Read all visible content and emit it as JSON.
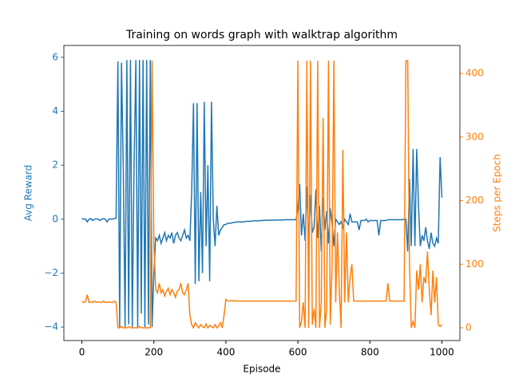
{
  "chart_data": {
    "type": "line",
    "title": "Training on words graph with walktrap algorithm",
    "xlabel": "Episode",
    "ylabel": "Avg Reward",
    "y2label": "Steps per Epoch",
    "x": [
      0,
      5,
      10,
      15,
      20,
      25,
      30,
      35,
      40,
      45,
      50,
      55,
      60,
      65,
      70,
      75,
      80,
      85,
      90,
      95,
      100,
      105,
      110,
      115,
      120,
      125,
      130,
      135,
      140,
      145,
      150,
      155,
      160,
      165,
      170,
      175,
      180,
      185,
      190,
      195,
      200,
      205,
      210,
      215,
      220,
      225,
      230,
      235,
      240,
      245,
      250,
      255,
      260,
      265,
      270,
      275,
      280,
      285,
      290,
      295,
      300,
      305,
      310,
      315,
      320,
      325,
      330,
      335,
      340,
      345,
      350,
      355,
      360,
      365,
      370,
      375,
      380,
      385,
      390,
      395,
      400,
      405,
      410,
      415,
      420,
      425,
      430,
      435,
      440,
      445,
      450,
      455,
      460,
      465,
      470,
      475,
      480,
      485,
      490,
      495,
      500,
      505,
      510,
      515,
      520,
      525,
      530,
      535,
      540,
      545,
      550,
      555,
      560,
      565,
      570,
      575,
      580,
      585,
      590,
      595,
      600,
      605,
      610,
      615,
      620,
      625,
      630,
      635,
      640,
      645,
      650,
      655,
      660,
      665,
      670,
      675,
      680,
      685,
      690,
      695,
      700,
      705,
      710,
      715,
      720,
      725,
      730,
      735,
      740,
      745,
      750,
      755,
      760,
      765,
      770,
      775,
      780,
      785,
      790,
      795,
      800,
      805,
      810,
      815,
      820,
      825,
      830,
      835,
      840,
      845,
      850,
      855,
      860,
      865,
      870,
      875,
      880,
      885,
      890,
      895,
      900,
      905,
      910,
      915,
      920,
      925,
      930,
      935,
      940,
      945,
      950,
      955,
      960,
      965,
      970,
      975,
      980,
      985,
      990,
      995,
      1000
    ],
    "series": [
      {
        "name": "Avg Reward",
        "color": "#1f77b4",
        "values": [
          0.02,
          0.0,
          0.01,
          -0.1,
          0.0,
          0.02,
          -0.05,
          0.0,
          0.01,
          0.0,
          -0.05,
          0.0,
          0.02,
          0.0,
          -0.1,
          0.0,
          0.01,
          0.0,
          0.02,
          0.03,
          5.85,
          -4.0,
          5.8,
          1.9,
          -4.0,
          5.9,
          -3.9,
          5.9,
          -4.0,
          2.0,
          5.9,
          -4.0,
          5.9,
          -3.5,
          5.9,
          -4.0,
          5.9,
          -3.9,
          5.9,
          -4.0,
          -2.0,
          -0.7,
          -0.8,
          -0.6,
          -0.9,
          -0.7,
          -0.5,
          -0.8,
          -0.6,
          -0.7,
          -0.5,
          -0.9,
          -0.6,
          -0.5,
          -0.7,
          -0.8,
          -0.6,
          -0.4,
          -0.7,
          -0.6,
          -0.8,
          1.0,
          4.3,
          -2.4,
          4.3,
          -2.3,
          1.0,
          -2.0,
          4.35,
          -1.0,
          2.0,
          -2.3,
          4.35,
          0.0,
          -1.0,
          0.5,
          -0.6,
          -0.4,
          -0.3,
          -0.2,
          -0.2,
          -0.15,
          -0.15,
          -0.15,
          -0.12,
          -0.12,
          -0.1,
          -0.1,
          -0.1,
          -0.1,
          -0.1,
          -0.08,
          -0.08,
          -0.08,
          -0.08,
          -0.06,
          -0.06,
          -0.06,
          -0.06,
          -0.05,
          -0.05,
          -0.05,
          -0.04,
          -0.04,
          -0.04,
          -0.04,
          -0.04,
          -0.03,
          -0.03,
          -0.03,
          -0.03,
          -0.03,
          -0.03,
          -0.02,
          -0.02,
          -0.02,
          -0.02,
          -0.02,
          -0.02,
          -0.02,
          0.4,
          1.3,
          -0.6,
          0.2,
          -0.8,
          1.2,
          -0.9,
          0.9,
          -0.5,
          -0.3,
          1.1,
          -0.7,
          0.5,
          -1.2,
          0.8,
          -0.4,
          0.3,
          -0.9,
          0.4,
          -0.2,
          -1.0,
          0.0,
          -0.1,
          -0.2,
          -0.1,
          -0.3,
          0.0,
          -0.1,
          -0.2,
          0.2,
          -0.1,
          -0.1,
          -0.1,
          -0.1,
          -0.4,
          -0.05,
          -0.05,
          -0.05,
          0.0,
          -0.1,
          -0.05,
          -0.05,
          -0.05,
          -0.05,
          -0.05,
          -0.6,
          -0.05,
          -0.05,
          -0.05,
          -0.05,
          -0.02,
          -0.02,
          -0.02,
          -0.02,
          -0.02,
          -0.02,
          -0.02,
          -0.02,
          -0.02,
          0.0,
          0.0,
          -1.2,
          1.5,
          -1.0,
          2.6,
          -1.0,
          2.6,
          0.5,
          -1.0,
          -0.6,
          -0.8,
          -0.3,
          -0.8,
          -1.1,
          -0.5,
          -0.9,
          -1.0,
          -0.7,
          -0.9,
          2.3,
          0.8
        ]
      },
      {
        "name": "Steps per Epoch",
        "color": "#ff7f0e",
        "axis": "y2",
        "values": [
          42,
          40,
          41,
          52,
          40,
          41,
          40,
          42,
          40,
          41,
          40,
          40,
          42,
          40,
          40,
          41,
          40,
          40,
          42,
          40,
          0,
          0,
          2,
          0,
          0,
          0,
          2,
          0,
          0,
          0,
          0,
          0,
          2,
          0,
          0,
          0,
          0,
          0,
          0,
          420,
          130,
          60,
          55,
          70,
          55,
          60,
          50,
          58,
          62,
          52,
          60,
          55,
          48,
          58,
          60,
          70,
          55,
          52,
          60,
          70,
          20,
          5,
          0,
          8,
          3,
          0,
          5,
          2,
          0,
          6,
          0,
          4,
          2,
          0,
          5,
          0,
          3,
          8,
          0,
          20,
          45,
          42,
          42,
          43,
          42,
          43,
          42,
          42,
          42,
          42,
          42,
          42,
          42,
          42,
          42,
          42,
          42,
          42,
          42,
          42,
          42,
          42,
          42,
          42,
          42,
          42,
          42,
          42,
          42,
          42,
          42,
          42,
          42,
          42,
          42,
          42,
          42,
          42,
          42,
          42,
          420,
          0,
          10,
          40,
          0,
          420,
          0,
          420,
          5,
          30,
          0,
          420,
          0,
          40,
          330,
          0,
          30,
          420,
          5,
          100,
          420,
          40,
          150,
          60,
          0,
          280,
          40,
          150,
          40,
          80,
          100,
          42,
          42,
          42,
          42,
          42,
          42,
          42,
          42,
          42,
          42,
          42,
          42,
          42,
          42,
          42,
          42,
          42,
          42,
          42,
          70,
          42,
          42,
          42,
          42,
          42,
          42,
          42,
          42,
          42,
          420,
          420,
          100,
          0,
          10,
          0,
          90,
          60,
          100,
          40,
          80,
          70,
          120,
          60,
          20,
          90,
          40,
          80,
          5,
          2,
          5
        ]
      }
    ],
    "xlim": [
      -50,
      1050
    ],
    "ylim": [
      -4.5,
      6.44
    ],
    "y2lim": [
      -20,
      444
    ],
    "xticks": [
      0,
      200,
      400,
      600,
      800,
      1000
    ],
    "yticks": [
      {
        "value": -4,
        "label": "−4"
      },
      {
        "value": -2,
        "label": "−2"
      },
      0,
      2,
      4,
      6
    ],
    "y2ticks": [
      0,
      100,
      200,
      300,
      400
    ]
  }
}
